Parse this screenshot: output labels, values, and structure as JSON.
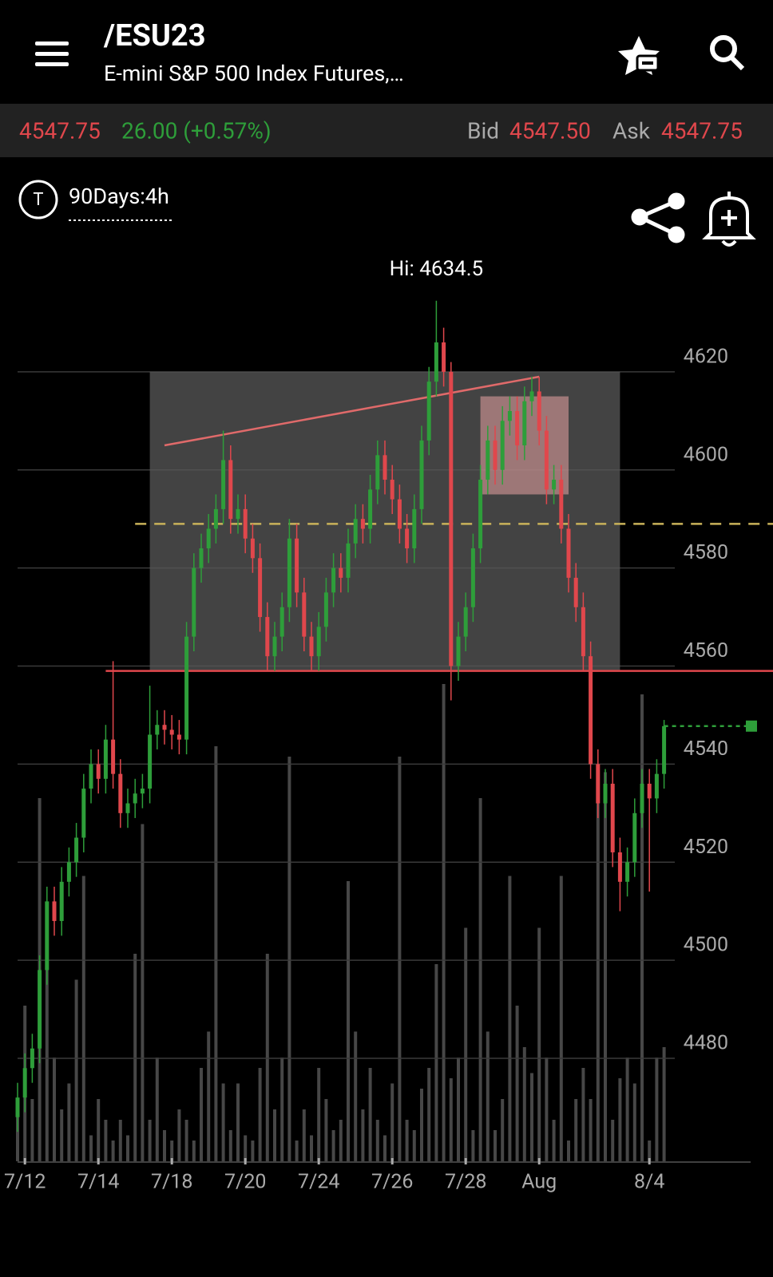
{
  "header": {
    "title": "/ESU23",
    "subtitle": "E-mini S&P 500 Index Futures,…"
  },
  "quote": {
    "last": "4547.75",
    "change": "26.00 (+0.57%)",
    "bid_label": "Bid",
    "bid": "4547.50",
    "ask_label": "Ask",
    "ask": "4547.75"
  },
  "toolbar": {
    "icon_letter": "T",
    "timeframe": "90Days:4h"
  },
  "chart_data": {
    "type": "candlestick",
    "annotation": "Hi: 4634.5",
    "ylim": [
      4459,
      4647
    ],
    "yticks": [
      4480,
      4500,
      4520,
      4540,
      4560,
      4580,
      4600,
      4620
    ],
    "grid": true,
    "up_color": "#2e9e3a",
    "down_color": "#e0474c",
    "volume_color": "#474747",
    "x_labels": [
      {
        "value": 1,
        "label": "7/12"
      },
      {
        "value": 11,
        "label": "7/14"
      },
      {
        "value": 21,
        "label": "7/18"
      },
      {
        "value": 31,
        "label": "7/20"
      },
      {
        "value": 41,
        "label": "7/24"
      },
      {
        "value": 51,
        "label": "7/26"
      },
      {
        "value": 61,
        "label": "7/28"
      },
      {
        "value": 71,
        "label": "Aug"
      },
      {
        "value": 86,
        "label": "8/4"
      }
    ],
    "open": [
      4468,
      4472,
      4478,
      4482,
      4498,
      4512,
      4508,
      4516,
      4520,
      4525,
      4535,
      4540,
      4537,
      4545,
      4538,
      4530,
      4532,
      4534,
      4535,
      4546,
      4548,
      4547,
      4546,
      4545,
      4566,
      4580,
      4584,
      4588,
      4592,
      4602,
      4590,
      4592,
      4586,
      4582,
      4570,
      4562,
      4566,
      4572,
      4586,
      4575,
      4566,
      4562,
      4568,
      4575,
      4580,
      4578,
      4585,
      4590,
      4588,
      4596,
      4603,
      4598,
      4594,
      4588,
      4584,
      4592,
      4606,
      4618,
      4626,
      4620,
      4560,
      4566,
      4572,
      4584,
      4598,
      4606,
      4600,
      4610,
      4612,
      4605,
      4614,
      4616,
      4608,
      4596,
      4598,
      4588,
      4578,
      4572,
      4562,
      4540,
      4532,
      4536,
      4522,
      4516,
      4520,
      4530,
      4536,
      4533,
      4538
    ],
    "high": [
      4475,
      4481,
      4485,
      4501,
      4515,
      4515,
      4519,
      4523,
      4528,
      4538,
      4543,
      4543,
      4548,
      4561,
      4541,
      4535,
      4537,
      4538,
      4556,
      4551,
      4551,
      4550,
      4549,
      4569,
      4583,
      4587,
      4591,
      4595,
      4608,
      4605,
      4595,
      4595,
      4589,
      4585,
      4573,
      4569,
      4575,
      4590,
      4589,
      4578,
      4569,
      4571,
      4578,
      4583,
      4583,
      4588,
      4593,
      4593,
      4599,
      4606,
      4606,
      4601,
      4597,
      4591,
      4595,
      4609,
      4621,
      4634.5,
      4629,
      4622,
      4569,
      4575,
      4587,
      4601,
      4609,
      4609,
      4613,
      4615,
      4615,
      4617,
      4619,
      4619,
      4611,
      4601,
      4601,
      4591,
      4581,
      4575,
      4565,
      4543,
      4539,
      4539,
      4525,
      4523,
      4533,
      4539,
      4539,
      4541,
      4549
    ],
    "low": [
      4465,
      4469,
      4475,
      4479,
      4495,
      4505,
      4505,
      4513,
      4517,
      4522,
      4532,
      4534,
      4534,
      4535,
      4527,
      4527,
      4529,
      4531,
      4532,
      4543,
      4544,
      4543,
      4542,
      4542,
      4563,
      4577,
      4581,
      4585,
      4589,
      4587,
      4587,
      4583,
      4579,
      4567,
      4559,
      4559,
      4563,
      4569,
      4572,
      4563,
      4559,
      4559,
      4565,
      4572,
      4575,
      4575,
      4582,
      4585,
      4585,
      4593,
      4595,
      4591,
      4585,
      4581,
      4581,
      4589,
      4603,
      4615,
      4617,
      4553,
      4557,
      4563,
      4569,
      4581,
      4595,
      4597,
      4597,
      4607,
      4602,
      4602,
      4611,
      4605,
      4593,
      4593,
      4585,
      4575,
      4569,
      4559,
      4537,
      4529,
      4529,
      4519,
      4510,
      4513,
      4517,
      4527,
      4514,
      4530,
      4535
    ],
    "close": [
      4472,
      4478,
      4482,
      4498,
      4512,
      4508,
      4516,
      4520,
      4525,
      4535,
      4540,
      4537,
      4545,
      4538,
      4530,
      4532,
      4534,
      4535,
      4546,
      4548,
      4547,
      4546,
      4545,
      4566,
      4580,
      4584,
      4588,
      4592,
      4602,
      4590,
      4592,
      4586,
      4582,
      4570,
      4562,
      4566,
      4572,
      4586,
      4575,
      4566,
      4562,
      4568,
      4575,
      4580,
      4578,
      4585,
      4590,
      4588,
      4596,
      4603,
      4598,
      4594,
      4588,
      4584,
      4592,
      4606,
      4618,
      4626,
      4620,
      4560,
      4566,
      4572,
      4584,
      4598,
      4606,
      4600,
      4610,
      4612,
      4605,
      4614,
      4616,
      4608,
      4596,
      4598,
      4588,
      4578,
      4572,
      4562,
      4540,
      4532,
      4536,
      4522,
      4516,
      4520,
      4530,
      4536,
      4533,
      4538,
      4547.75
    ],
    "volume": [
      10,
      30,
      12,
      70,
      38,
      20,
      10,
      15,
      35,
      55,
      5,
      12,
      8,
      4,
      8,
      5,
      40,
      65,
      8,
      20,
      6,
      4,
      10,
      8,
      4,
      18,
      25,
      80,
      15,
      6,
      15,
      5,
      4,
      18,
      40,
      10,
      20,
      78,
      4,
      10,
      5,
      18,
      12,
      6,
      8,
      54,
      25,
      10,
      18,
      8,
      5,
      15,
      78,
      8,
      6,
      14,
      18,
      38,
      92,
      16,
      20,
      45,
      6,
      70,
      25,
      6,
      12,
      55,
      30,
      22,
      17,
      45,
      20,
      8,
      55,
      4,
      12,
      18,
      12,
      70,
      75,
      8,
      16,
      20,
      15,
      90,
      4,
      20,
      22
    ],
    "zones": [
      {
        "from": 18,
        "to": 82,
        "top": 4620,
        "bottom": 4559,
        "color": "#5a5a5a"
      },
      {
        "from": 63,
        "to": 75,
        "top": 4615,
        "bottom": 4595,
        "color": "#e8a3a3"
      }
    ],
    "hlines": [
      {
        "value": 4589,
        "from": 16,
        "color": "#c9b25a",
        "dashed": true
      },
      {
        "value": 4559,
        "from": 12,
        "color": "#e0474c",
        "dashed": false
      }
    ],
    "trendline": {
      "from": [
        20,
        4605
      ],
      "to": [
        71,
        4619
      ],
      "color": "#e06a6a"
    },
    "last_price": 4547.75
  }
}
